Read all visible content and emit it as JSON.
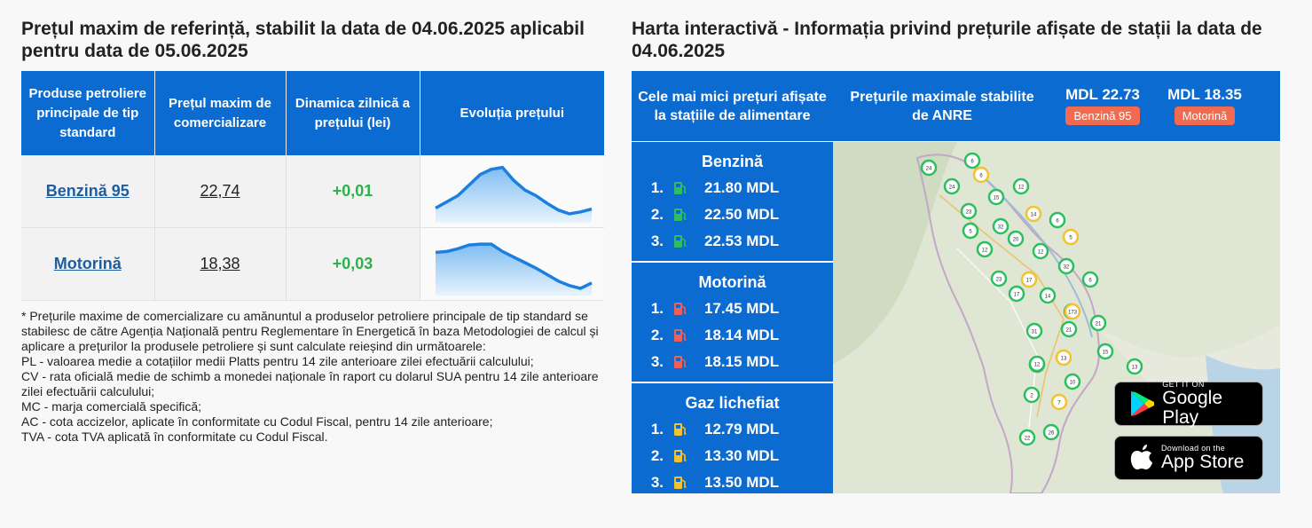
{
  "left": {
    "title": "Prețul maxim de referință, stabilit la data de 04.06.2025 aplicabil pentru data de 05.06.2025",
    "headers": [
      "Produse petroliere principale de tip standard",
      "Prețul maxim de comercializare",
      "Dinamica zilnică a prețului (lei)",
      "Evoluția prețului"
    ],
    "rows": [
      {
        "product": "Benzină 95",
        "price": "22,74",
        "delta": "+0,01",
        "trend": [
          0.12,
          0.25,
          0.38,
          0.6,
          0.82,
          0.93,
          0.97,
          0.7,
          0.5,
          0.38,
          0.22,
          0.08,
          0.0,
          0.04,
          0.1
        ]
      },
      {
        "product": "Motorină",
        "price": "18,38",
        "delta": "+0,03",
        "trend": [
          0.78,
          0.8,
          0.86,
          0.94,
          0.96,
          0.96,
          0.8,
          0.68,
          0.56,
          0.44,
          0.3,
          0.16,
          0.06,
          0.0,
          0.12
        ]
      }
    ],
    "note": [
      "* Prețurile maxime de comercializare cu amănuntul a produselor petroliere principale de tip standard se stabilesc de către Agenția Națională pentru Reglementare în Energetică în baza Metodologiei de calcul și aplicare a prețurilor la produsele petroliere și sunt calculate reieșind din următoarele:",
      "PL - valoarea medie a cotațiilor medii Platts pentru 14 zile anterioare zilei efectuării calculului;",
      "CV - rata oficială medie de schimb a monedei naționale în raport cu dolarul SUA pentru 14 zile anterioare zilei efectuării calculului;",
      "MC - marja comercială specifică;",
      "AC - cota accizelor, aplicate în conformitate cu Codul Fiscal, pentru 14 zile anterioare;",
      "TVA - cota TVA aplicată în conformitate cu Codul Fiscal."
    ]
  },
  "right": {
    "title": "Harta interactivă - Informația privind prețurile afișate de stații la data de 04.06.2025",
    "lowest_label": "Cele mai mici prețuri afișate la stațiile de alimentare",
    "max_label": "Prețurile maximale stabilite de ANRE",
    "max_prices": [
      {
        "value": "MDL 22.73",
        "badge": "Benzină 95"
      },
      {
        "value": "MDL 18.35",
        "badge": "Motorină"
      }
    ],
    "fuels": [
      {
        "title": "Benzină",
        "icon_color": "#2dbf5f",
        "items": [
          {
            "n": "1.",
            "price": "21.80 MDL"
          },
          {
            "n": "2.",
            "price": "22.50 MDL"
          },
          {
            "n": "3.",
            "price": "22.53 MDL"
          }
        ]
      },
      {
        "title": "Motorină",
        "icon_color": "#f0605a",
        "items": [
          {
            "n": "1.",
            "price": "17.45 MDL"
          },
          {
            "n": "2.",
            "price": "18.14 MDL"
          },
          {
            "n": "3.",
            "price": "18.15 MDL"
          }
        ]
      },
      {
        "title": "Gaz lichefiat",
        "icon_color": "#f2c230",
        "items": [
          {
            "n": "1.",
            "price": "12.79 MDL"
          },
          {
            "n": "2.",
            "price": "13.30 MDL"
          },
          {
            "n": "3.",
            "price": "13.50 MDL"
          }
        ]
      }
    ],
    "stores": {
      "google_small": "GET IT ON",
      "google_big": "Google Play",
      "apple_small": "Download on the",
      "apple_big": "App Store"
    },
    "map_markers": [
      "24",
      "6",
      "6",
      "24",
      "15",
      "12",
      "23",
      "14",
      "6",
      "5",
      "32",
      "20",
      "5",
      "12",
      "12",
      "32",
      "23",
      "17",
      "6",
      "17",
      "14",
      "17",
      "173",
      "21",
      "31",
      "21",
      "15",
      "13",
      "13",
      "9",
      "10",
      "2",
      "7",
      "22",
      "26",
      "12"
    ]
  }
}
